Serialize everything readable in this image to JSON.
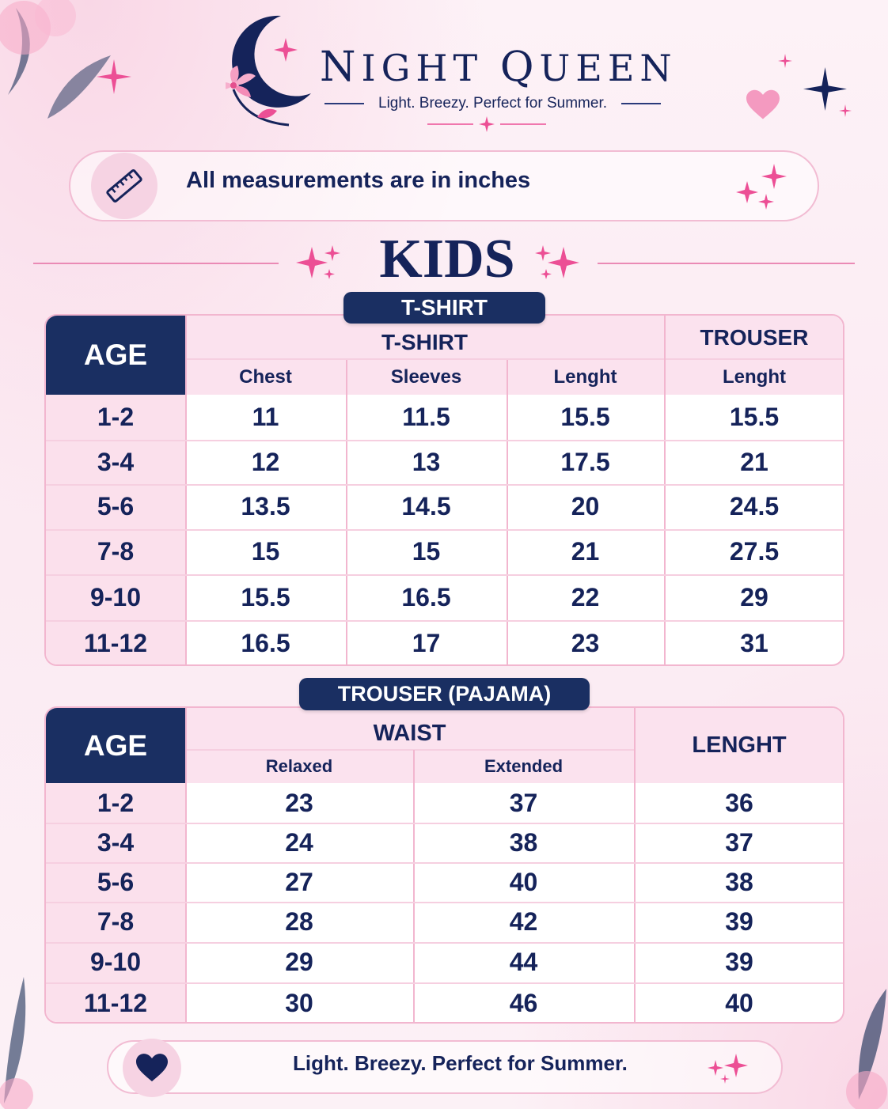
{
  "brand": {
    "name_first_letter": "N",
    "name_rest": "IGHT",
    "name_second_first": "Q",
    "name_second_rest": "UEEN",
    "tagline": "Light. Breezy. Perfect for Summer."
  },
  "notice": {
    "text": "All measurements are in inches",
    "icon": "ruler-icon"
  },
  "section_title": "KIDS",
  "tshirt_table": {
    "pill": "T-SHIRT",
    "age_header": "AGE",
    "group_tshirt": "T-SHIRT",
    "group_trouser": "TROUSER",
    "columns": [
      "Chest",
      "Sleeves",
      "Lenght",
      "Lenght"
    ],
    "rows": [
      {
        "age": "1-2",
        "chest": "11",
        "sleeves": "11.5",
        "length": "15.5",
        "trouser_length": "15.5"
      },
      {
        "age": "3-4",
        "chest": "12",
        "sleeves": "13",
        "length": "17.5",
        "trouser_length": "21"
      },
      {
        "age": "5-6",
        "chest": "13.5",
        "sleeves": "14.5",
        "length": "20",
        "trouser_length": "24.5"
      },
      {
        "age": "7-8",
        "chest": "15",
        "sleeves": "15",
        "length": "21",
        "trouser_length": "27.5"
      },
      {
        "age": "9-10",
        "chest": "15.5",
        "sleeves": "16.5",
        "length": "22",
        "trouser_length": "29"
      },
      {
        "age": "11-12",
        "chest": "16.5",
        "sleeves": "17",
        "length": "23",
        "trouser_length": "31"
      }
    ]
  },
  "trouser_table": {
    "pill": "TROUSER (PAJAMA)",
    "age_header": "AGE",
    "group_waist": "WAIST",
    "length_header": "LENGHT",
    "columns": [
      "Relaxed",
      "Extended"
    ],
    "rows": [
      {
        "age": "1-2",
        "relaxed": "23",
        "extended": "37",
        "length": "36"
      },
      {
        "age": "3-4",
        "relaxed": "24",
        "extended": "38",
        "length": "37"
      },
      {
        "age": "5-6",
        "relaxed": "27",
        "extended": "40",
        "length": "38"
      },
      {
        "age": "7-8",
        "relaxed": "28",
        "extended": "42",
        "length": "39"
      },
      {
        "age": "9-10",
        "relaxed": "29",
        "extended": "44",
        "length": "39"
      },
      {
        "age": "11-12",
        "relaxed": "30",
        "extended": "46",
        "length": "40"
      }
    ]
  },
  "footer": {
    "text": "Light. Breezy. Perfect for Summer.",
    "icon": "heart-icon"
  },
  "colors": {
    "navy": "#1a2f62",
    "pink": "#ec4f95",
    "light_pink": "#fbe2ee"
  }
}
